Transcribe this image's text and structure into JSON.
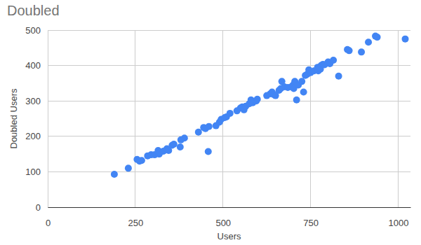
{
  "chart_data": {
    "type": "scatter",
    "title": "Doubled",
    "x_label": "Users",
    "y_label": "Doubled Users",
    "color": "#4285f4",
    "marker": "circle",
    "grid": true,
    "xlim": [
      0,
      1035
    ],
    "xticks": [
      0,
      250,
      500,
      750,
      1000
    ],
    "ylim": [
      0,
      500
    ],
    "yticks": [
      0,
      100,
      200,
      300,
      400,
      500
    ],
    "x": [
      190,
      230,
      255,
      262,
      268,
      285,
      295,
      305,
      315,
      318,
      320,
      330,
      340,
      345,
      355,
      360,
      378,
      380,
      390,
      430,
      445,
      450,
      460,
      458,
      480,
      490,
      495,
      505,
      510,
      520,
      540,
      550,
      555,
      560,
      565,
      575,
      580,
      585,
      595,
      598,
      625,
      635,
      640,
      645,
      650,
      660,
      665,
      668,
      675,
      685,
      695,
      700,
      702,
      705,
      710,
      715,
      725,
      730,
      735,
      740,
      745,
      750,
      760,
      770,
      772,
      778,
      780,
      785,
      790,
      800,
      805,
      815,
      830,
      855,
      860,
      895,
      915,
      935,
      940,
      1020
    ],
    "values": [
      93,
      110,
      135,
      130,
      132,
      145,
      148,
      148,
      160,
      150,
      155,
      158,
      165,
      160,
      175,
      178,
      170,
      190,
      195,
      212,
      225,
      222,
      228,
      157,
      230,
      240,
      248,
      253,
      255,
      265,
      272,
      280,
      283,
      275,
      285,
      292,
      303,
      295,
      300,
      305,
      315,
      320,
      325,
      318,
      315,
      330,
      335,
      355,
      340,
      338,
      340,
      345,
      335,
      355,
      303,
      345,
      355,
      325,
      372,
      375,
      388,
      380,
      385,
      395,
      385,
      390,
      400,
      403,
      402,
      410,
      405,
      415,
      370,
      445,
      442,
      438,
      466,
      483,
      480,
      475
    ]
  }
}
